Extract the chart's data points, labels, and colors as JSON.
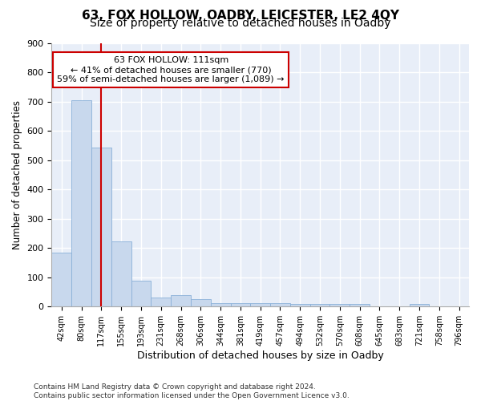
{
  "title": "63, FOX HOLLOW, OADBY, LEICESTER, LE2 4QY",
  "subtitle": "Size of property relative to detached houses in Oadby",
  "xlabel": "Distribution of detached houses by size in Oadby",
  "ylabel": "Number of detached properties",
  "categories": [
    "42sqm",
    "80sqm",
    "117sqm",
    "155sqm",
    "193sqm",
    "231sqm",
    "268sqm",
    "306sqm",
    "344sqm",
    "381sqm",
    "419sqm",
    "457sqm",
    "494sqm",
    "532sqm",
    "570sqm",
    "608sqm",
    "645sqm",
    "683sqm",
    "721sqm",
    "758sqm",
    "796sqm"
  ],
  "values": [
    185,
    705,
    543,
    224,
    88,
    30,
    40,
    25,
    13,
    12,
    12,
    12,
    9,
    10,
    10,
    10,
    0,
    0,
    10,
    0,
    0
  ],
  "bar_color": "#c8d8ed",
  "bar_edge_color": "#8ab0d8",
  "red_line_x": 2.0,
  "annotation_text": "63 FOX HOLLOW: 111sqm\n← 41% of detached houses are smaller (770)\n59% of semi-detached houses are larger (1,089) →",
  "annotation_box_color": "#ffffff",
  "annotation_box_edge_color": "#cc0000",
  "ylim": [
    0,
    900
  ],
  "yticks": [
    0,
    100,
    200,
    300,
    400,
    500,
    600,
    700,
    800,
    900
  ],
  "footer": "Contains HM Land Registry data © Crown copyright and database right 2024.\nContains public sector information licensed under the Open Government Licence v3.0.",
  "fig_background_color": "#ffffff",
  "plot_background_color": "#e8eef8",
  "grid_color": "#ffffff",
  "title_fontsize": 11,
  "subtitle_fontsize": 10,
  "ylabel_fontsize": 8.5,
  "xlabel_fontsize": 9,
  "footer_fontsize": 6.5
}
